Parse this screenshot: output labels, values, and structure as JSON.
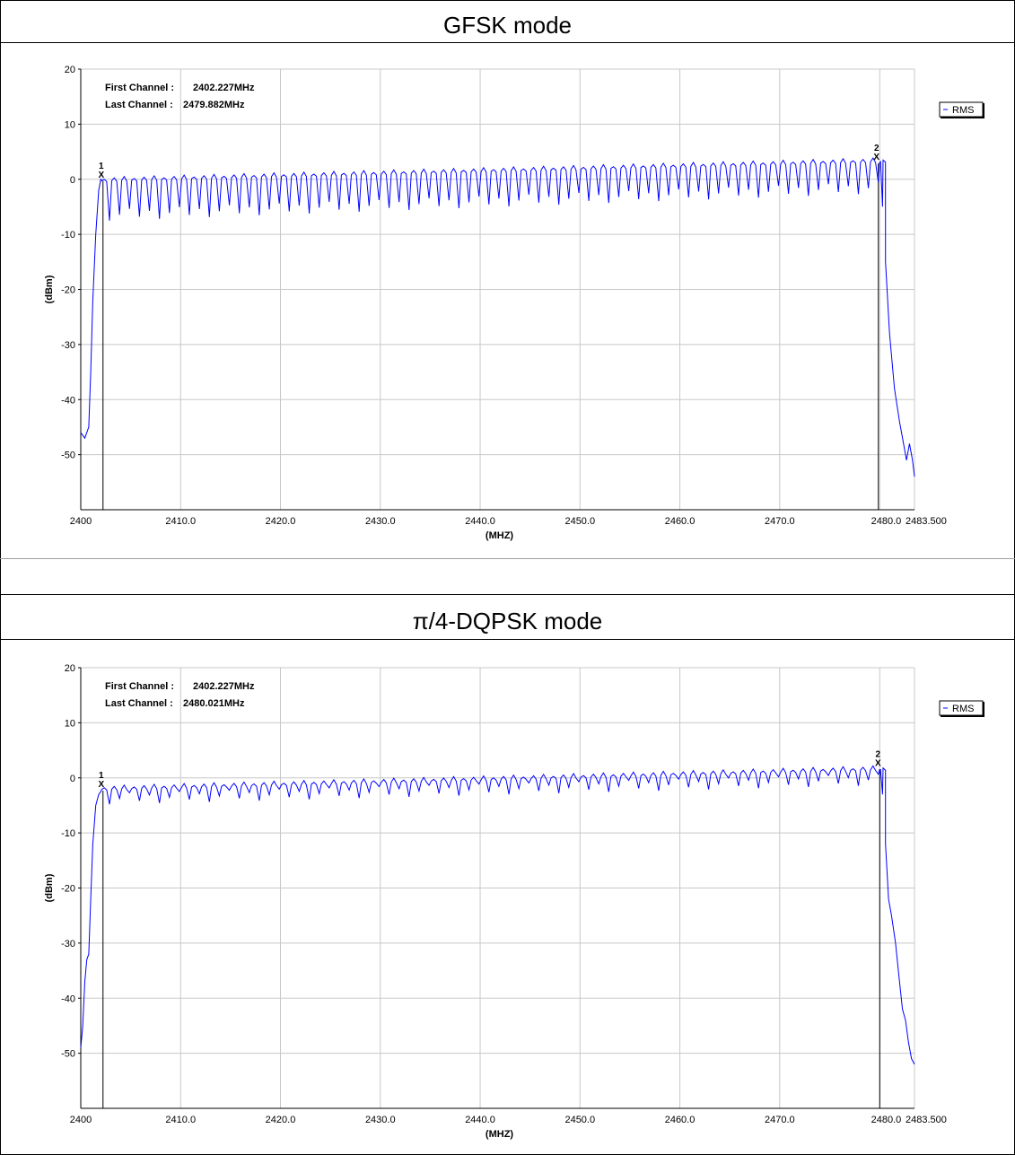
{
  "panels": [
    {
      "title": "GFSK mode",
      "first_channel_label": "First Channel :",
      "first_channel_value": "2402.227MHz",
      "last_channel_label": "Last Channel :",
      "last_channel_value": "2479.882MHz",
      "legend": "RMS"
    },
    {
      "title": "π/4-DQPSK mode",
      "first_channel_label": "First Channel :",
      "first_channel_value": "2402.227MHz",
      "last_channel_label": "Last Channel :",
      "last_channel_value": "2480.021MHz",
      "legend": "RMS"
    }
  ],
  "colors": {
    "trace": "#0000ff",
    "grid": "#c8c8c8",
    "marker_line": "#000000"
  },
  "chart_data": [
    {
      "type": "line",
      "title": "GFSK mode",
      "xlabel": "(MHZ)",
      "ylabel": "(dBm)",
      "xlim": [
        2400,
        2483.5
      ],
      "ylim": [
        -60,
        20
      ],
      "x_ticks": [
        2400,
        2410,
        2420,
        2430,
        2440,
        2450,
        2460,
        2470,
        2480.02,
        2483.5
      ],
      "x_tick_labels": [
        "2400",
        "2410.0",
        "2420.0",
        "2430.0",
        "2440.0",
        "2450.0",
        "2460.0",
        "2470.0",
        "2480.0",
        "2483.500"
      ],
      "y_ticks": [
        20,
        10,
        0,
        -10,
        -20,
        -30,
        -40,
        -50
      ],
      "y_tick_labels": [
        "20",
        "10",
        "0",
        "-10",
        "-20",
        "-30",
        "-40",
        "-50"
      ],
      "grid": true,
      "legend_position": "top-right",
      "series": [
        {
          "name": "RMS",
          "channels": {
            "start": 2402,
            "step": 1,
            "count": 79,
            "peak_start": 0.0,
            "peak_end": 3.5,
            "dip_start": -6.5,
            "dip_end": -1.5
          },
          "edges": {
            "left": [
              [
                2400,
                -46
              ],
              [
                2400.4,
                -47
              ],
              [
                2400.8,
                -45
              ],
              [
                2401.0,
                -35
              ],
              [
                2401.2,
                -22
              ],
              [
                2401.5,
                -10
              ],
              [
                2401.8,
                -2
              ],
              [
                2402.0,
                0
              ]
            ],
            "right": [
              [
                2480.0,
                3
              ],
              [
                2480.3,
                -5
              ],
              [
                2480.6,
                -15
              ],
              [
                2481.0,
                -28
              ],
              [
                2481.5,
                -38
              ],
              [
                2482.0,
                -44
              ],
              [
                2482.4,
                -48
              ],
              [
                2482.7,
                -51
              ],
              [
                2483.0,
                -48
              ],
              [
                2483.3,
                -51
              ],
              [
                2483.5,
                -54
              ]
            ]
          }
        }
      ],
      "markers": [
        {
          "label": "1",
          "x": 2402.227,
          "y": 0.0
        },
        {
          "label": "2",
          "x": 2479.882,
          "y": 3.2
        }
      ]
    },
    {
      "type": "line",
      "title": "π/4-DQPSK mode",
      "xlabel": "(MHZ)",
      "ylabel": "(dBm)",
      "xlim": [
        2400,
        2483.5
      ],
      "ylim": [
        -60,
        20
      ],
      "x_ticks": [
        2400,
        2410,
        2420,
        2430,
        2440,
        2450,
        2460,
        2470,
        2480.02,
        2483.5
      ],
      "x_tick_labels": [
        "2400",
        "2410.0",
        "2420.0",
        "2430.0",
        "2440.0",
        "2450.0",
        "2460.0",
        "2470.0",
        "2480.0",
        "2483.500"
      ],
      "y_ticks": [
        20,
        10,
        0,
        -10,
        -20,
        -30,
        -40,
        -50
      ],
      "y_tick_labels": [
        "20",
        "10",
        "0",
        "-10",
        "-20",
        "-30",
        "-40",
        "-50"
      ],
      "grid": true,
      "legend_position": "top-right",
      "series": [
        {
          "name": "RMS",
          "channels": {
            "start": 2402,
            "step": 1,
            "count": 79,
            "peak_start": -1.8,
            "peak_end": 1.8,
            "dip_start": -3.8,
            "dip_end": -0.3
          },
          "edges": {
            "left": [
              [
                2400,
                -49
              ],
              [
                2400.2,
                -45
              ],
              [
                2400.4,
                -37
              ],
              [
                2400.6,
                -33
              ],
              [
                2400.8,
                -32
              ],
              [
                2401.0,
                -22
              ],
              [
                2401.2,
                -12
              ],
              [
                2401.5,
                -5
              ],
              [
                2401.8,
                -3
              ],
              [
                2402.0,
                -2.5
              ]
            ],
            "right": [
              [
                2480.0,
                1.5
              ],
              [
                2480.3,
                -3
              ],
              [
                2480.6,
                -12
              ],
              [
                2480.9,
                -22
              ],
              [
                2481.2,
                -25
              ],
              [
                2481.6,
                -30
              ],
              [
                2482.0,
                -37
              ],
              [
                2482.3,
                -42
              ],
              [
                2482.6,
                -44
              ],
              [
                2482.9,
                -48
              ],
              [
                2483.2,
                -51
              ],
              [
                2483.5,
                -52
              ]
            ]
          }
        }
      ],
      "markers": [
        {
          "label": "1",
          "x": 2402.227,
          "y": -2.0
        },
        {
          "label": "2",
          "x": 2480.021,
          "y": 1.8
        }
      ]
    }
  ]
}
